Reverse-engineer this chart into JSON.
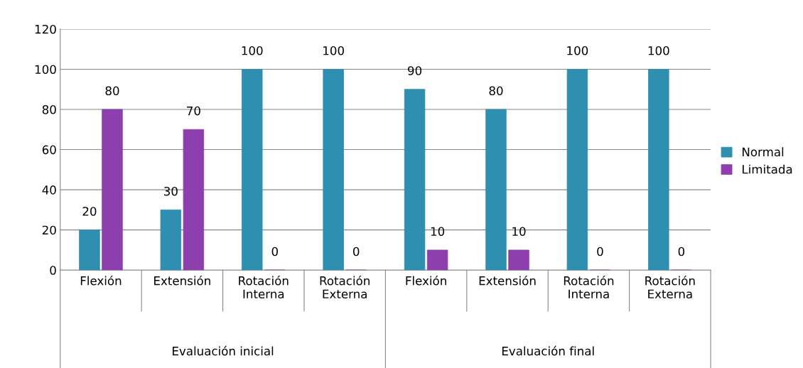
{
  "chart_data": {
    "type": "bar",
    "categories": [
      "Flexión",
      "Extensión",
      "Rotación\nInterna",
      "Rotación\nExterna",
      "Flexión",
      "Extensión",
      "Rotación\nInterna",
      "Rotación\nExterna"
    ],
    "series": [
      {
        "name": "Normal",
        "color": "#2f8fb0",
        "values": [
          20,
          30,
          100,
          100,
          90,
          80,
          100,
          100
        ]
      },
      {
        "name": "Limitada",
        "color": "#8e3fae",
        "values": [
          80,
          70,
          0,
          0,
          10,
          10,
          0,
          0
        ]
      }
    ],
    "annotations": [
      "Evaluación inicial",
      "Evaluación final"
    ],
    "ylim": [
      0,
      120
    ],
    "yticks": [
      0,
      20,
      40,
      60,
      80,
      100,
      120
    ],
    "grid": "y",
    "legend": "right",
    "data_labels": true
  }
}
